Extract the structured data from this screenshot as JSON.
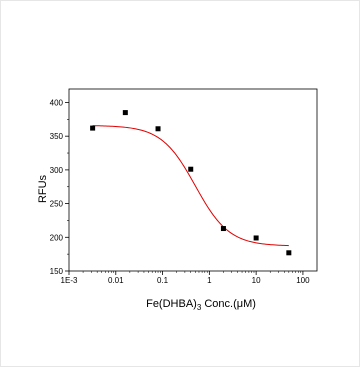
{
  "chart_data": {
    "type": "scatter",
    "xscale": "log",
    "xlim": [
      0.001,
      200
    ],
    "ylim": [
      150,
      420
    ],
    "yticks": [
      150,
      200,
      250,
      300,
      350,
      400
    ],
    "ytick_labels": [
      "150",
      "200",
      "250",
      "300",
      "350",
      "400"
    ],
    "xticks": [
      0.001,
      0.01,
      0.1,
      1,
      10,
      100
    ],
    "xtick_labels": [
      "1E-3",
      "0.01",
      "0.1",
      "1",
      "10",
      "100"
    ],
    "ylabel": "RFUs",
    "xlabel": {
      "main": "Fe(DHBA)",
      "subscript": "3",
      "suffix": " Conc.(μM)"
    },
    "grid": false,
    "legend": "none",
    "series": [
      {
        "kind": "points",
        "marker": "square",
        "color": "#000000",
        "x": [
          0.0032,
          0.016,
          0.08,
          0.4,
          2,
          10,
          50
        ],
        "y": [
          362,
          385,
          361,
          301,
          213,
          199,
          177
        ]
      },
      {
        "kind": "fit-curve",
        "color": "#e00000",
        "bottom": 187,
        "top": 366,
        "ec50": 0.5,
        "hill": 1.2
      }
    ]
  }
}
